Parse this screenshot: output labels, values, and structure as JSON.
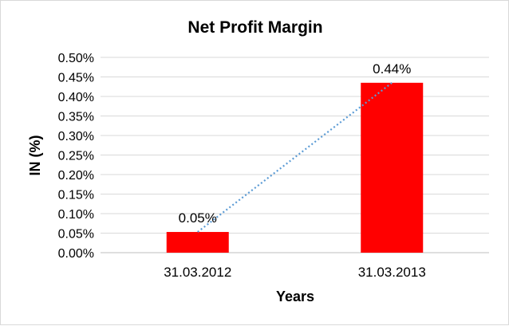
{
  "chart_data": {
    "type": "bar",
    "title": "Net Profit Margin",
    "xlabel": "Years",
    "ylabel": "IN (%)",
    "categories": [
      "31.03.2012",
      "31.03.2013"
    ],
    "values": [
      0.053,
      0.435
    ],
    "data_labels": [
      "0.05%",
      "0.44%"
    ],
    "ylim": [
      0,
      0.5
    ],
    "yticks": [
      "0.00%",
      "0.05%",
      "0.10%",
      "0.15%",
      "0.20%",
      "0.25%",
      "0.30%",
      "0.35%",
      "0.40%",
      "0.45%",
      "0.50%"
    ],
    "grid": true,
    "legend": "none",
    "trendline": "linear dotted",
    "colors": {
      "bar": "#ff0000",
      "trendline": "#5b9bd5",
      "grid": "#d9d9d9"
    }
  }
}
